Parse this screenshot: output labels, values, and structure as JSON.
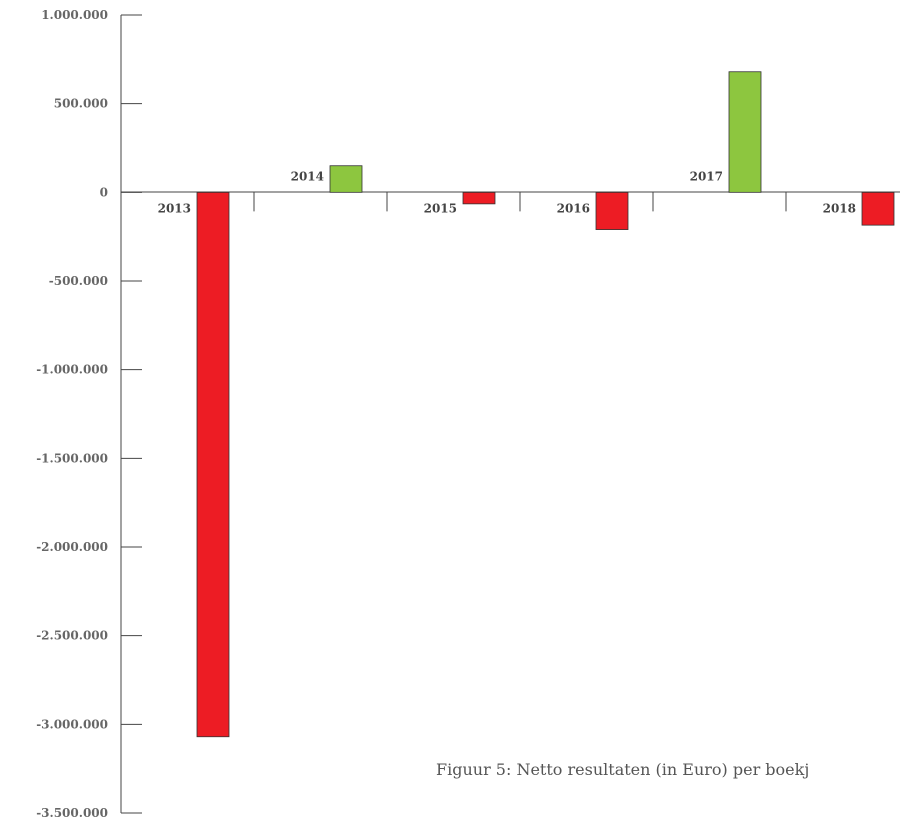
{
  "chart_data": {
    "type": "bar",
    "categories": [
      "2013",
      "2014",
      "2015",
      "2016",
      "2017",
      "2018"
    ],
    "values": [
      -3070000,
      150000,
      -65000,
      -210000,
      680000,
      -185000
    ],
    "ylim": [
      -3500000,
      1000000
    ],
    "yticks": [
      {
        "value": 1000000,
        "label": "1.000.000"
      },
      {
        "value": 500000,
        "label": "500.000"
      },
      {
        "value": 0,
        "label": "0"
      },
      {
        "value": -500000,
        "label": "-500.000"
      },
      {
        "value": -1000000,
        "label": "-1.000.000"
      },
      {
        "value": -1500000,
        "label": "-1.500.000"
      },
      {
        "value": -2000000,
        "label": "-2.000.000"
      },
      {
        "value": -2500000,
        "label": "-2.500.000"
      },
      {
        "value": -3000000,
        "label": "-3.000.000"
      },
      {
        "value": -3500000,
        "label": "-3.500.000"
      }
    ],
    "colors": {
      "positive": "#8dc63f",
      "negative": "#ed1c24"
    },
    "grid": false,
    "caption": "Figuur 5: Netto resultaten (in Euro) per boekj"
  }
}
